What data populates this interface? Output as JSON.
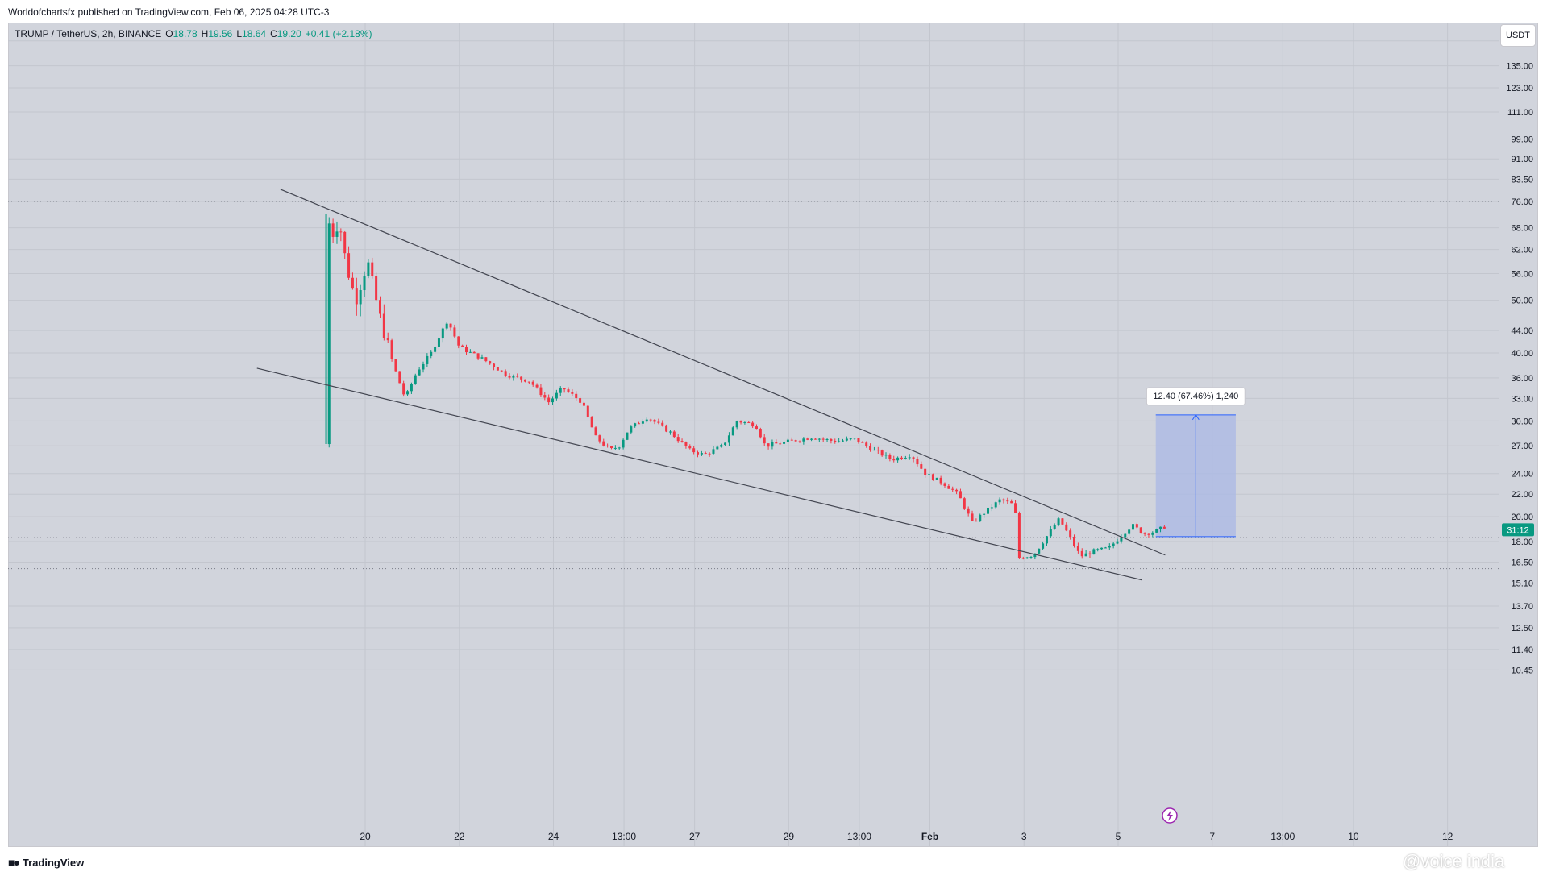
{
  "header": {
    "publish_line": "Worldofchartsfx published on TradingView.com, Feb 06, 2025 04:28 UTC-3"
  },
  "legend": {
    "symbol": "TRUMP / TetherUS, 2h, BINANCE",
    "o_label": "O",
    "o_value": "18.78",
    "h_label": "H",
    "h_value": "19.56",
    "l_label": "L",
    "l_value": "18.64",
    "c_label": "C",
    "c_value": "19.20",
    "change": "+0.41 (+2.18%)"
  },
  "price_axis": {
    "unit": "USDT",
    "current_label": "31:12"
  },
  "footer": {
    "brand": "TradingView",
    "watermark": "@voice india"
  },
  "colors": {
    "up": "#089981",
    "down": "#f23645",
    "background": "#d1d4dc",
    "measure_fill": "#a9b8e6",
    "measure_line": "#2962ff",
    "current_price": "#089981"
  },
  "chart_data": {
    "type": "candlestick",
    "scale": "log",
    "y_ticks": [
      150.0,
      135.0,
      123.0,
      111.0,
      99.0,
      91.0,
      83.5,
      76.0,
      68.0,
      62.0,
      56.0,
      50.0,
      44.0,
      40.0,
      36.0,
      33.0,
      30.0,
      27.0,
      24.0,
      22.0,
      20.0,
      18.0,
      16.5,
      15.1,
      13.7,
      12.5,
      11.4,
      10.45
    ],
    "x_ticks": [
      {
        "label": "20",
        "t": 20.0
      },
      {
        "label": "22",
        "t": 22.0
      },
      {
        "label": "24",
        "t": 24.0
      },
      {
        "label": "13:00",
        "t": 25.5
      },
      {
        "label": "27",
        "t": 27.0
      },
      {
        "label": "29",
        "t": 29.0
      },
      {
        "label": "13:00",
        "t": 30.5
      },
      {
        "label": "Feb",
        "t": 32.0
      },
      {
        "label": "3",
        "t": 34.0
      },
      {
        "label": "5",
        "t": 36.0
      },
      {
        "label": "7",
        "t": 38.0
      },
      {
        "label": "13:00",
        "t": 39.5
      },
      {
        "label": "10",
        "t": 41.0
      },
      {
        "label": "12",
        "t": 43.0
      }
    ],
    "price_path": [
      {
        "t": 19.15,
        "p": 27.2
      },
      {
        "t": 19.18,
        "p": 72.0
      },
      {
        "t": 19.3,
        "p": 66.0
      },
      {
        "t": 19.45,
        "p": 70.0
      },
      {
        "t": 19.6,
        "p": 58.0
      },
      {
        "t": 19.8,
        "p": 50.0
      },
      {
        "t": 20.05,
        "p": 59.0
      },
      {
        "t": 20.3,
        "p": 47.0
      },
      {
        "t": 20.6,
        "p": 38.0
      },
      {
        "t": 20.85,
        "p": 33.0
      },
      {
        "t": 21.1,
        "p": 37.0
      },
      {
        "t": 21.4,
        "p": 40.0
      },
      {
        "t": 21.75,
        "p": 46.0
      },
      {
        "t": 22.0,
        "p": 41.0
      },
      {
        "t": 22.5,
        "p": 39.0
      },
      {
        "t": 23.0,
        "p": 36.5
      },
      {
        "t": 23.5,
        "p": 35.5
      },
      {
        "t": 23.9,
        "p": 32.5
      },
      {
        "t": 24.2,
        "p": 34.5
      },
      {
        "t": 24.6,
        "p": 32.5
      },
      {
        "t": 24.9,
        "p": 28.0
      },
      {
        "t": 25.2,
        "p": 26.5
      },
      {
        "t": 25.4,
        "p": 27.0
      },
      {
        "t": 25.6,
        "p": 29.0
      },
      {
        "t": 26.0,
        "p": 30.5
      },
      {
        "t": 26.5,
        "p": 28.5
      },
      {
        "t": 26.9,
        "p": 26.5
      },
      {
        "t": 27.2,
        "p": 26.0
      },
      {
        "t": 27.6,
        "p": 27.0
      },
      {
        "t": 27.9,
        "p": 30.0
      },
      {
        "t": 28.3,
        "p": 29.5
      },
      {
        "t": 28.5,
        "p": 27.0
      },
      {
        "t": 29.0,
        "p": 27.5
      },
      {
        "t": 29.5,
        "p": 28.0
      },
      {
        "t": 30.0,
        "p": 27.5
      },
      {
        "t": 30.4,
        "p": 27.8
      },
      {
        "t": 30.8,
        "p": 26.5
      },
      {
        "t": 31.2,
        "p": 25.5
      },
      {
        "t": 31.6,
        "p": 26.0
      },
      {
        "t": 31.9,
        "p": 24.0
      },
      {
        "t": 32.3,
        "p": 23.0
      },
      {
        "t": 32.6,
        "p": 22.0
      },
      {
        "t": 32.9,
        "p": 19.5
      },
      {
        "t": 33.2,
        "p": 20.5
      },
      {
        "t": 33.5,
        "p": 21.5
      },
      {
        "t": 33.8,
        "p": 21.0
      },
      {
        "t": 33.9,
        "p": 16.8
      },
      {
        "t": 34.2,
        "p": 17.0
      },
      {
        "t": 34.5,
        "p": 18.5
      },
      {
        "t": 34.75,
        "p": 19.8
      },
      {
        "t": 34.95,
        "p": 18.5
      },
      {
        "t": 35.2,
        "p": 16.9
      },
      {
        "t": 35.5,
        "p": 17.3
      },
      {
        "t": 35.8,
        "p": 17.5
      },
      {
        "t": 36.05,
        "p": 18.4
      },
      {
        "t": 36.3,
        "p": 19.3
      },
      {
        "t": 36.55,
        "p": 18.6
      },
      {
        "t": 36.8,
        "p": 18.8
      },
      {
        "t": 37.0,
        "p": 19.2
      }
    ],
    "trendlines": [
      {
        "name": "upper",
        "from": {
          "t": 18.2,
          "p": 80.0
        },
        "to": {
          "t": 37.0,
          "p": 17.0
        }
      },
      {
        "name": "lower",
        "from": {
          "t": 17.7,
          "p": 37.5
        },
        "to": {
          "t": 36.5,
          "p": 15.3
        }
      }
    ],
    "horizontal_levels": [
      76.0,
      18.3,
      16.05
    ],
    "measure": {
      "label": "12.40 (67.46%) 1,240",
      "t_from": 36.8,
      "t_to": 38.5,
      "p_from": 18.38,
      "p_to": 30.78
    }
  }
}
